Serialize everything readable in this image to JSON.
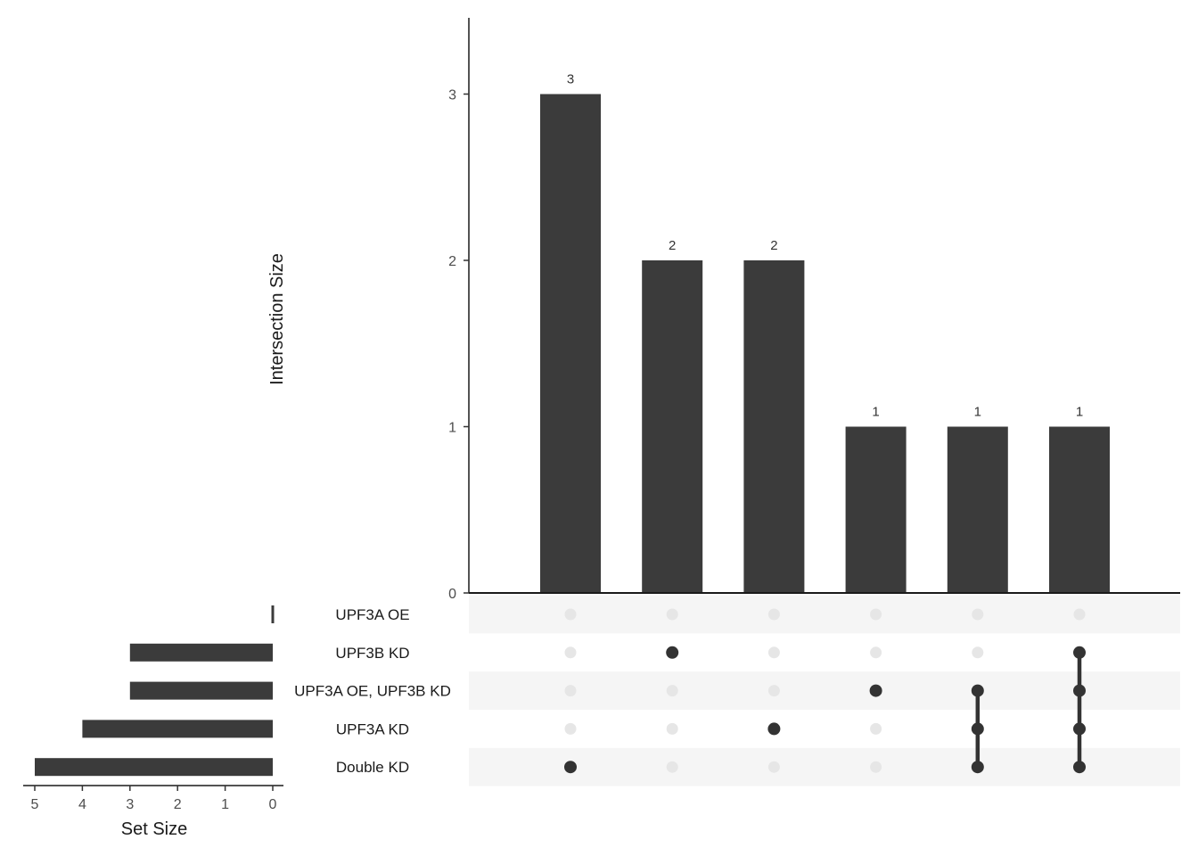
{
  "chart_data": {
    "type": "bar",
    "subtype": "upset",
    "title": "",
    "ylabel": "Intersection Size",
    "ylim": [
      0,
      3
    ],
    "yticks": [
      0,
      1,
      2,
      3
    ],
    "sets": [
      "UPF3A OE",
      "UPF3B KD",
      "UPF3A OE, UPF3B KD",
      "UPF3A KD",
      "Double KD"
    ],
    "set_size": {
      "xlabel": "Set Size",
      "values": [
        0,
        3,
        3,
        4,
        5
      ],
      "xlim": [
        0,
        5
      ],
      "xticks": [
        5,
        4,
        3,
        2,
        1,
        0
      ]
    },
    "intersections": [
      {
        "sets": [
          "Double KD"
        ],
        "size": 3,
        "label": "3"
      },
      {
        "sets": [
          "UPF3B KD"
        ],
        "size": 2,
        "label": "2"
      },
      {
        "sets": [
          "UPF3A KD"
        ],
        "size": 2,
        "label": "2"
      },
      {
        "sets": [
          "UPF3A OE, UPF3B KD"
        ],
        "size": 1,
        "label": "1"
      },
      {
        "sets": [
          "UPF3A OE, UPF3B KD",
          "UPF3A KD",
          "Double KD"
        ],
        "size": 1,
        "label": "1"
      },
      {
        "sets": [
          "UPF3B KD",
          "UPF3A OE, UPF3B KD",
          "UPF3A KD",
          "Double KD"
        ],
        "size": 1,
        "label": "1"
      }
    ],
    "colors": {
      "bar": "#3b3b3b",
      "dot_active": "#333333",
      "dot_inactive": "#e6e6e6",
      "stripe": "#f5f5f5"
    }
  }
}
